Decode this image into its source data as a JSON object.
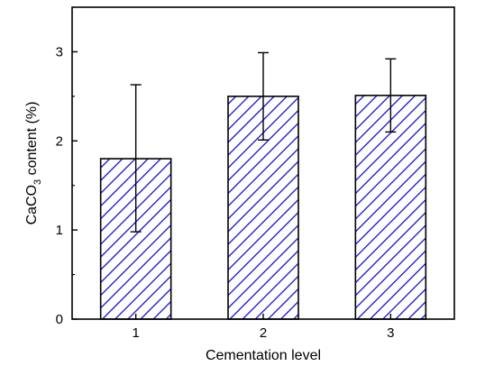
{
  "chart_data": {
    "type": "bar",
    "categories": [
      "1",
      "2",
      "3"
    ],
    "values": [
      1.8,
      2.5,
      2.51
    ],
    "error_bars": [
      {
        "low": 0.98,
        "high": 2.63
      },
      {
        "low": 2.01,
        "high": 2.99
      },
      {
        "low": 2.1,
        "high": 2.92
      }
    ],
    "xlabel": "Cementation level",
    "ylabel": {
      "main": "CaCO",
      "sub": "3",
      "rest": " content (%)"
    },
    "ylim": [
      0,
      3.5
    ],
    "yticks": [
      "0",
      "1",
      "2",
      "3"
    ],
    "bar_fill": "hatched",
    "bar_color": "#0000cc",
    "grid": false,
    "legend": "none"
  }
}
